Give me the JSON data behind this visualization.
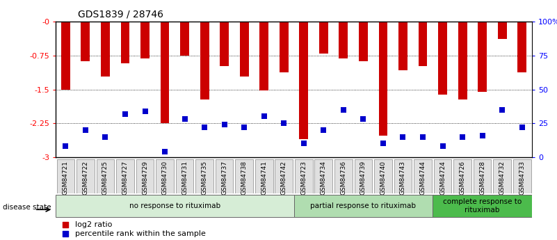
{
  "title": "GDS1839 / 28746",
  "samples": [
    "GSM84721",
    "GSM84722",
    "GSM84725",
    "GSM84727",
    "GSM84729",
    "GSM84730",
    "GSM84731",
    "GSM84735",
    "GSM84737",
    "GSM84738",
    "GSM84741",
    "GSM84742",
    "GSM84723",
    "GSM84734",
    "GSM84736",
    "GSM84739",
    "GSM84740",
    "GSM84743",
    "GSM84744",
    "GSM84724",
    "GSM84726",
    "GSM84728",
    "GSM84732",
    "GSM84733"
  ],
  "log2_ratio": [
    -1.5,
    -0.88,
    -1.22,
    -0.92,
    -0.82,
    -2.25,
    -0.75,
    -1.72,
    -0.98,
    -1.22,
    -1.52,
    -1.12,
    -2.6,
    -0.7,
    -0.82,
    -0.88,
    -2.52,
    -1.08,
    -0.98,
    -1.62,
    -1.72,
    -1.55,
    -0.38,
    -1.12
  ],
  "percentile": [
    8,
    20,
    15,
    32,
    34,
    4,
    28,
    22,
    24,
    22,
    30,
    25,
    10,
    20,
    35,
    28,
    10,
    15,
    15,
    8,
    15,
    16,
    35,
    22
  ],
  "groups": [
    {
      "label": "no response to rituximab",
      "start": 0,
      "end": 12,
      "color": "#d6edd6"
    },
    {
      "label": "partial response to rituximab",
      "start": 12,
      "end": 19,
      "color": "#b0ddb0"
    },
    {
      "label": "complete response to\nrituximab",
      "start": 19,
      "end": 24,
      "color": "#4cbb4c"
    }
  ],
  "ylim": [
    -3.0,
    0.0
  ],
  "yticks": [
    0.0,
    -0.75,
    -1.5,
    -2.25,
    -3.0
  ],
  "ytick_labels": [
    "-0",
    "-0.75",
    "-1.5",
    "-2.25",
    "-3"
  ],
  "right_ytick_pcts": [
    100,
    75,
    50,
    25,
    0
  ],
  "right_ytick_labels": [
    "100%",
    "75",
    "50",
    "25",
    "0"
  ],
  "bar_color": "#cc0000",
  "dot_color": "#0000cc",
  "bar_width": 0.45,
  "dot_size": 30
}
